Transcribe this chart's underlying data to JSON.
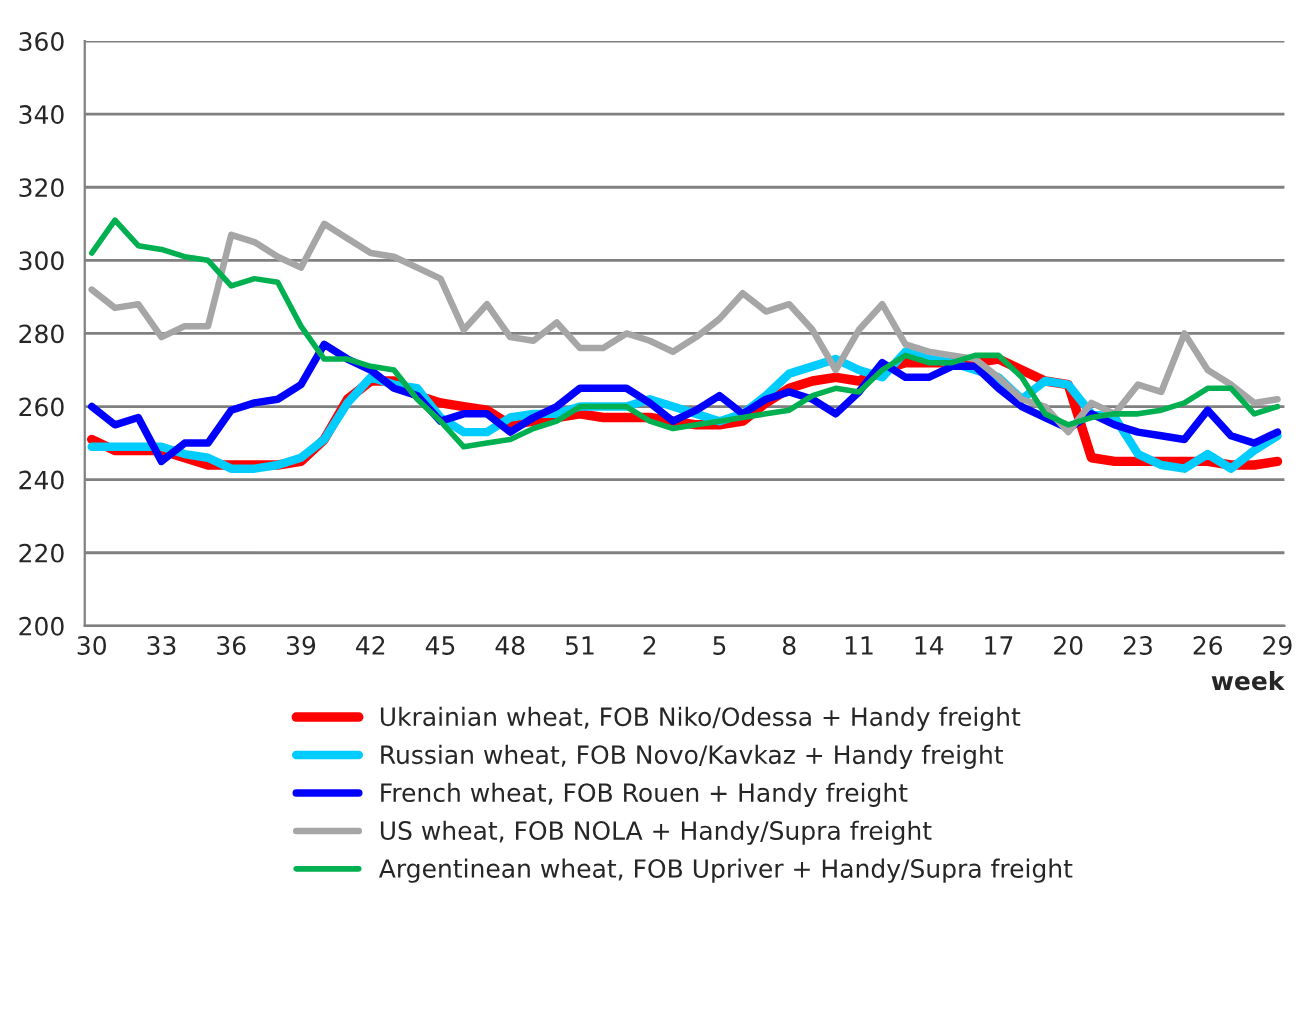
{
  "chart_data": {
    "type": "line",
    "xlabel": "week",
    "categories": [
      "30",
      null,
      null,
      "33",
      null,
      null,
      "36",
      null,
      null,
      "39",
      null,
      null,
      "42",
      null,
      null,
      "45",
      null,
      null,
      "48",
      null,
      null,
      "51",
      null,
      null,
      "2",
      null,
      null,
      "5",
      null,
      null,
      "8",
      null,
      null,
      "11",
      null,
      null,
      "14",
      null,
      null,
      "17",
      null,
      null,
      "20",
      null,
      null,
      "23",
      null,
      null,
      "26",
      null,
      null,
      "29"
    ],
    "ylim": [
      200,
      360
    ],
    "yticks": [
      200,
      220,
      240,
      260,
      280,
      300,
      320,
      340,
      360
    ],
    "grid": "y",
    "legend": "bottom",
    "marker": "none",
    "line_style": "solid",
    "series": [
      {
        "name": "Ukrainian wheat, FOB Niko/Odessa + Handy freight",
        "color": "#ff0000",
        "values": [
          251,
          248,
          248,
          248,
          246,
          244,
          244,
          244,
          244,
          245,
          251,
          262,
          267,
          267,
          263,
          261,
          260,
          259,
          255,
          256,
          257,
          258,
          257,
          257,
          257,
          256,
          255,
          255,
          256,
          261,
          265,
          267,
          268,
          267,
          270,
          272,
          272,
          272,
          272,
          273,
          270,
          267,
          266,
          246,
          245,
          245,
          245,
          245,
          245,
          244,
          244,
          245
        ]
      },
      {
        "name": "Russian wheat, FOB Novo/Kavkaz + Handy freight",
        "color": "#00ccff",
        "values": [
          249,
          249,
          249,
          249,
          247,
          246,
          243,
          243,
          244,
          246,
          251,
          261,
          268,
          266,
          265,
          257,
          253,
          253,
          257,
          258,
          258,
          260,
          260,
          260,
          262,
          260,
          258,
          256,
          258,
          263,
          269,
          271,
          273,
          270,
          268,
          275,
          273,
          272,
          270,
          268,
          262,
          267,
          266,
          258,
          257,
          247,
          244,
          243,
          247,
          243,
          248,
          252
        ]
      },
      {
        "name": "French wheat, FOB Rouen + Handy freight",
        "color": "#0000ff",
        "values": [
          260,
          255,
          257,
          245,
          250,
          250,
          259,
          261,
          262,
          266,
          277,
          273,
          270,
          265,
          263,
          256,
          258,
          258,
          253,
          257,
          260,
          265,
          265,
          265,
          261,
          256,
          259,
          263,
          258,
          262,
          264,
          262,
          258,
          264,
          272,
          268,
          268,
          271,
          271,
          265,
          260,
          257,
          254,
          258,
          255,
          253,
          252,
          251,
          259,
          252,
          250,
          253
        ]
      },
      {
        "name": "US wheat, FOB NOLA + Handy/Supra freight",
        "color": "#a6a6a6",
        "values": [
          292,
          287,
          288,
          279,
          282,
          282,
          307,
          305,
          301,
          298,
          310,
          306,
          302,
          301,
          298,
          295,
          281,
          288,
          279,
          278,
          283,
          276,
          276,
          280,
          278,
          275,
          279,
          284,
          291,
          286,
          288,
          281,
          270,
          281,
          288,
          277,
          275,
          274,
          273,
          268,
          262,
          260,
          253,
          261,
          258,
          266,
          264,
          280,
          270,
          266,
          261,
          262
        ]
      },
      {
        "name": "Argentinean wheat, FOB Upriver + Handy/Supra freight",
        "color": "#00b050",
        "values": [
          302,
          311,
          304,
          303,
          301,
          300,
          293,
          295,
          294,
          282,
          273,
          273,
          271,
          270,
          262,
          256,
          249,
          250,
          251,
          254,
          256,
          260,
          260,
          260,
          256,
          254,
          255,
          256,
          257,
          258,
          259,
          263,
          265,
          264,
          270,
          274,
          272,
          272,
          274,
          274,
          268,
          258,
          255,
          257,
          258,
          258,
          259,
          261,
          265,
          265,
          258,
          260
        ]
      }
    ]
  }
}
